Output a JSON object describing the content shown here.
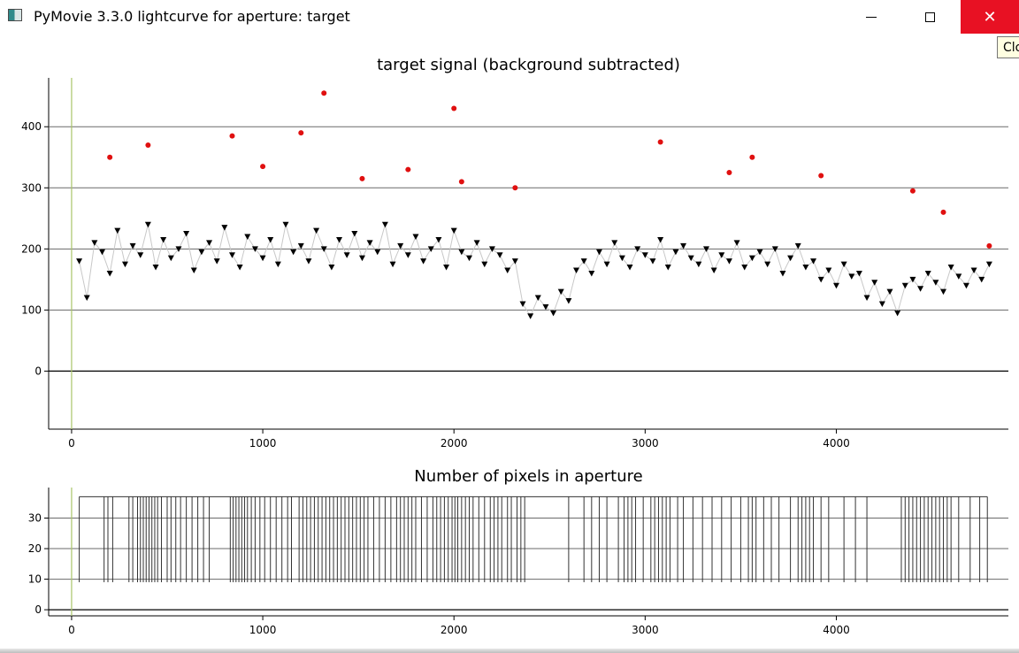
{
  "window": {
    "title": "PyMovie 3.3.0 lightcurve for aperture: target",
    "close_tooltip": "Clo"
  },
  "chart_data": [
    {
      "type": "scatter",
      "title": "target signal (background subtracted)",
      "xlim": [
        -120,
        4900
      ],
      "ylim": [
        -95,
        480
      ],
      "x_ticks": [
        0,
        1000,
        2000,
        3000,
        4000
      ],
      "y_ticks": [
        0,
        100,
        200,
        300,
        400
      ],
      "grid": "horizontal",
      "vertical_marker_x": 0,
      "x": [
        40,
        80,
        120,
        160,
        200,
        240,
        280,
        320,
        360,
        400,
        440,
        480,
        520,
        560,
        600,
        640,
        680,
        720,
        760,
        800,
        840,
        880,
        920,
        960,
        1000,
        1040,
        1080,
        1120,
        1160,
        1200,
        1240,
        1280,
        1320,
        1360,
        1400,
        1440,
        1480,
        1520,
        1560,
        1600,
        1640,
        1680,
        1720,
        1760,
        1800,
        1840,
        1880,
        1920,
        1960,
        2000,
        2040,
        2080,
        2120,
        2160,
        2200,
        2240,
        2280,
        2320,
        2360,
        2400,
        2440,
        2480,
        2520,
        2560,
        2600,
        2640,
        2680,
        2720,
        2760,
        2800,
        2840,
        2880,
        2920,
        2960,
        3000,
        3040,
        3080,
        3120,
        3160,
        3200,
        3240,
        3280,
        3320,
        3360,
        3400,
        3440,
        3480,
        3520,
        3560,
        3600,
        3640,
        3680,
        3720,
        3760,
        3800,
        3840,
        3880,
        3920,
        3960,
        4000,
        4040,
        4080,
        4120,
        4160,
        4200,
        4240,
        4280,
        4320,
        4360,
        4400,
        4440,
        4480,
        4520,
        4560,
        4600,
        4640,
        4680,
        4720,
        4760,
        4800
      ],
      "series": [
        {
          "values": [
            180,
            120,
            210,
            195,
            160,
            230,
            175,
            205,
            190,
            240,
            170,
            215,
            185,
            200,
            225,
            165,
            195,
            210,
            180,
            235,
            190,
            170,
            220,
            200,
            185,
            215,
            175,
            240,
            195,
            205,
            180,
            230,
            200,
            170,
            215,
            190,
            225,
            185,
            210,
            195,
            240,
            175,
            205,
            190,
            220,
            180,
            200,
            215,
            170,
            230,
            195,
            185,
            210,
            175,
            200,
            190,
            165,
            180,
            110,
            90,
            120,
            105,
            95,
            130,
            115,
            165,
            180,
            160,
            195,
            175,
            210,
            185,
            170,
            200,
            190,
            180,
            215,
            170,
            195,
            205,
            185,
            175,
            200,
            165,
            190,
            180,
            210,
            170,
            185,
            195,
            175,
            200,
            160,
            185,
            205,
            170,
            180,
            150,
            165,
            140,
            175,
            155,
            160,
            120,
            145,
            110,
            130,
            95,
            140,
            150,
            135,
            160,
            145,
            130,
            170,
            155,
            140,
            165,
            150,
            175
          ]
        }
      ],
      "highlight_x": [
        200,
        400,
        840,
        1000,
        1200,
        1320,
        1520,
        1760,
        2000,
        2040,
        2320,
        3080,
        3440,
        3560,
        3920,
        4400,
        4560,
        4800
      ],
      "highlight_values": [
        350,
        370,
        385,
        335,
        390,
        455,
        315,
        330,
        430,
        310,
        300,
        375,
        325,
        350,
        320,
        295,
        260,
        205
      ]
    },
    {
      "type": "line",
      "title": "Number of pixels in aperture",
      "xlim": [
        -120,
        4900
      ],
      "ylim": [
        -2,
        40
      ],
      "x_ticks": [
        0,
        1000,
        2000,
        3000,
        4000
      ],
      "y_ticks": [
        0,
        10,
        20,
        30
      ],
      "grid": "horizontal",
      "vertical_marker_x": 0,
      "baseline_value": 37,
      "dip_value": 9,
      "dip_x": [
        40,
        170,
        190,
        215,
        300,
        320,
        345,
        360,
        375,
        390,
        405,
        420,
        435,
        450,
        470,
        500,
        520,
        545,
        570,
        600,
        630,
        660,
        690,
        720,
        830,
        845,
        860,
        875,
        890,
        905,
        920,
        940,
        960,
        985,
        1010,
        1040,
        1070,
        1100,
        1130,
        1150,
        1190,
        1210,
        1230,
        1250,
        1270,
        1290,
        1310,
        1330,
        1350,
        1370,
        1390,
        1410,
        1430,
        1450,
        1470,
        1490,
        1510,
        1530,
        1550,
        1580,
        1610,
        1640,
        1670,
        1700,
        1720,
        1740,
        1760,
        1780,
        1800,
        1830,
        1860,
        1890,
        1910,
        1930,
        1950,
        1970,
        1990,
        2005,
        2020,
        2040,
        2060,
        2080,
        2100,
        2130,
        2160,
        2190,
        2210,
        2230,
        2250,
        2280,
        2300,
        2330,
        2350,
        2370,
        2600,
        2680,
        2720,
        2760,
        2800,
        2860,
        2890,
        2910,
        2930,
        2950,
        2990,
        3030,
        3050,
        3070,
        3090,
        3110,
        3130,
        3170,
        3200,
        3250,
        3300,
        3350,
        3400,
        3450,
        3500,
        3540,
        3560,
        3580,
        3620,
        3660,
        3700,
        3760,
        3800,
        3820,
        3840,
        3860,
        3880,
        3920,
        3960,
        4040,
        4100,
        4160,
        4340,
        4360,
        4380,
        4400,
        4420,
        4440,
        4460,
        4480,
        4500,
        4520,
        4540,
        4560,
        4580,
        4600,
        4640,
        4700,
        4750,
        4790
      ]
    }
  ]
}
